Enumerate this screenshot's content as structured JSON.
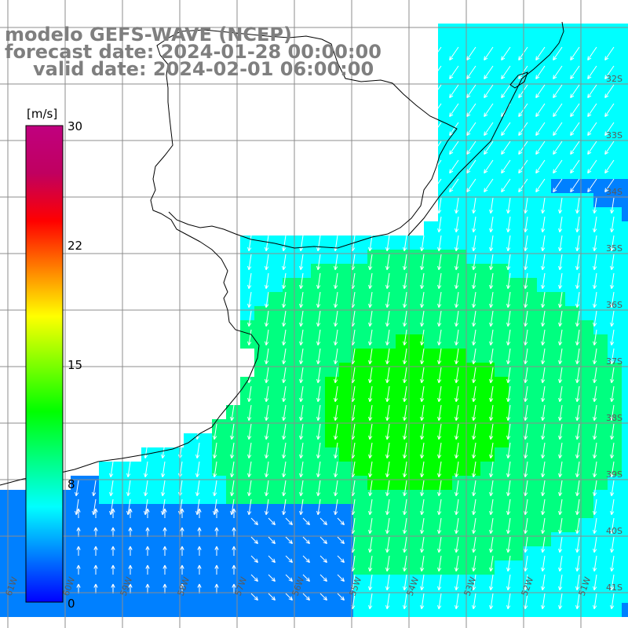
{
  "title": {
    "model": "modelo GEFS-WAVE (NCEP)",
    "forecast": "forecast date: 2024-01-28 00:00:00",
    "valid": "valid date: 2024-02-01 06:00:00"
  },
  "colorbar": {
    "unit": "[m/s]",
    "ticks": [
      "30",
      "22",
      "15",
      "8",
      "0"
    ],
    "colors": [
      "#0000ff",
      "#0080ff",
      "#00ffff",
      "#00ff80",
      "#00ff00",
      "#80ff00",
      "#ffff00",
      "#ff8000",
      "#ff0000",
      "#c00060",
      "#c0007f"
    ]
  },
  "grid_labels": {
    "latitude": [
      "32S",
      "33S",
      "34S",
      "35S",
      "36S",
      "37S",
      "38S",
      "39S",
      "40S",
      "41S"
    ],
    "longitude": [
      "61W",
      "60W",
      "59W",
      "58W",
      "57W",
      "56W",
      "55W",
      "54W",
      "53W",
      "52W",
      "51W"
    ]
  },
  "colors": {
    "land": "#ffffff",
    "coast": "#000000",
    "grid": "#8c8c8c",
    "arrow": "#ffffff",
    "title": "#7f7f7f"
  }
}
